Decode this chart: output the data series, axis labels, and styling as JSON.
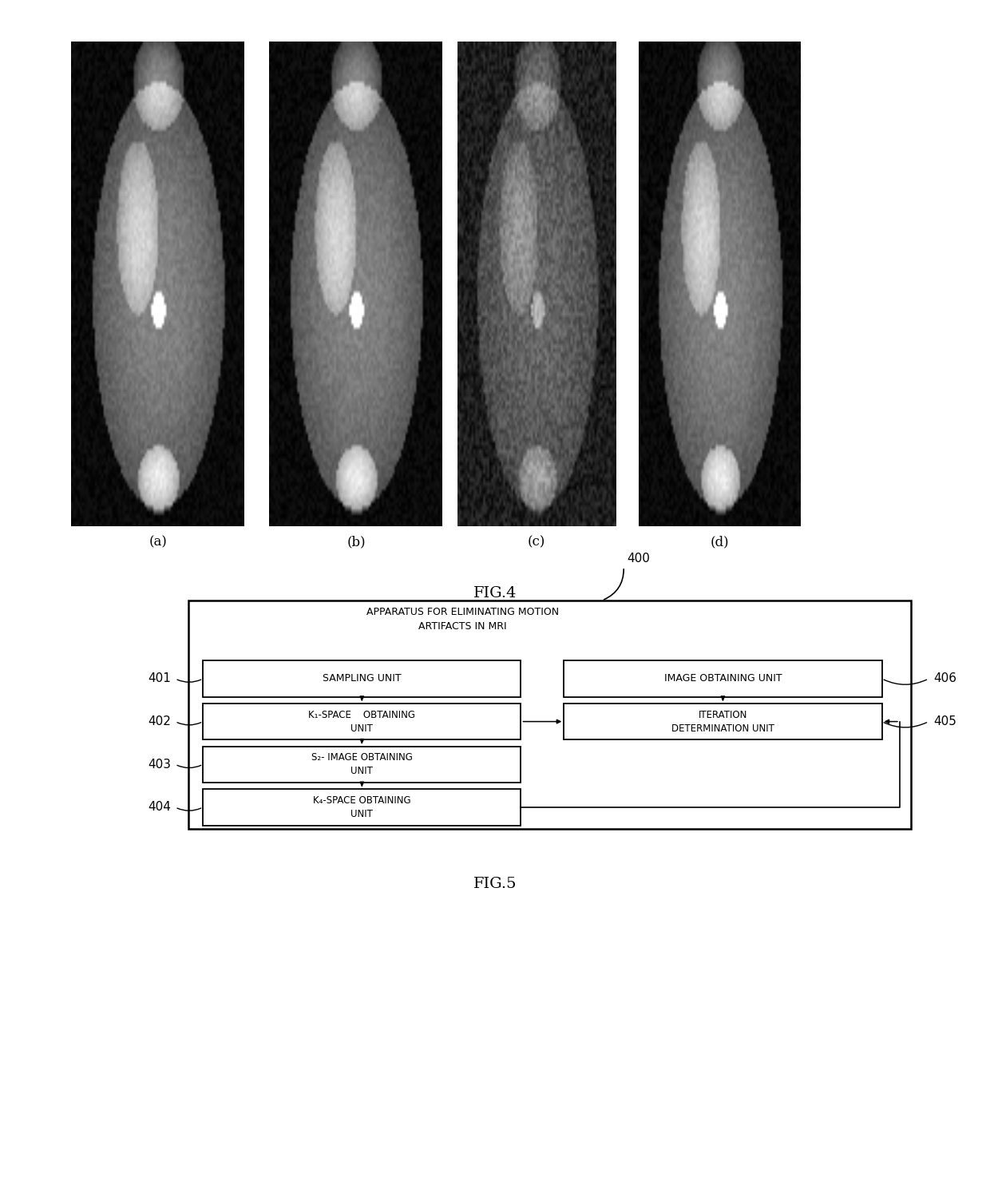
{
  "fig_width": 12.4,
  "fig_height": 15.04,
  "bg_color": "#ffffff",
  "fig4_label": "FIG.4",
  "fig5_label": "FIG.5",
  "subfig_labels": [
    "(a)",
    "(b)",
    "(c)",
    "(d)"
  ],
  "diagram_title_line1": "APPARATUS FOR ELIMINATING MOTION",
  "diagram_title_line2": "ARTIFACTS IN MRI",
  "label_400": "400",
  "label_401": "401",
  "label_402": "402",
  "label_403": "403",
  "label_404": "404",
  "label_405": "405",
  "label_406": "406",
  "box_sampling": "SAMPLING UNIT",
  "box_image_obtaining": "IMAGE OBTAINING UNIT",
  "box_k1space": "K₁-SPACE    OBTAINING\nUNIT",
  "box_iteration": "ITERATION\nDETERMINATION UNIT",
  "box_s2image": "S₂- IMAGE OBTAINING\nUNIT",
  "box_k4space": "K₄-SPACE OBTAINING\nUNIT"
}
